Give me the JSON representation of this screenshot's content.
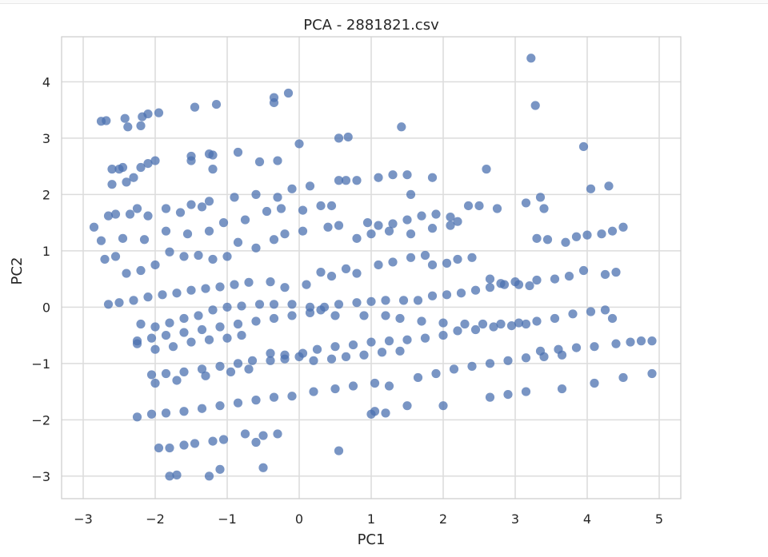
{
  "chart_data": {
    "type": "scatter",
    "title": "PCA - 2881821.csv",
    "xlabel": "PC1",
    "ylabel": "PC2",
    "xlim": [
      -3.3,
      5.3
    ],
    "ylim": [
      -3.4,
      4.8
    ],
    "xticks": [
      -3,
      -2,
      -1,
      0,
      1,
      2,
      3,
      4,
      5
    ],
    "yticks": [
      -3,
      -2,
      -1,
      0,
      1,
      2,
      3,
      4
    ],
    "xtick_labels": [
      "−3",
      "−2",
      "−1",
      "0",
      "1",
      "2",
      "3",
      "4",
      "5"
    ],
    "ytick_labels": [
      "−3",
      "−2",
      "−1",
      "0",
      "1",
      "2",
      "3",
      "4"
    ],
    "grid": true,
    "background": "#ffffff",
    "grid_color": "#dcdcdc",
    "marker_color": "#4c72b0",
    "series": [
      {
        "points": [
          [
            -2.85,
            1.42
          ],
          [
            -2.75,
            3.3
          ],
          [
            -2.68,
            3.31
          ],
          [
            -2.6,
            2.45
          ],
          [
            -2.5,
            2.45
          ],
          [
            -2.45,
            2.48
          ],
          [
            -2.42,
            3.35
          ],
          [
            -2.38,
            3.2
          ],
          [
            -2.2,
            3.22
          ],
          [
            -2.18,
            3.38
          ],
          [
            -2.1,
            3.43
          ],
          [
            -1.95,
            3.45
          ],
          [
            -1.45,
            3.55
          ],
          [
            -1.15,
            3.6
          ],
          [
            -0.35,
            3.72
          ],
          [
            -0.35,
            3.63
          ],
          [
            -0.15,
            3.8
          ],
          [
            0.0,
            2.9
          ],
          [
            0.55,
            3.0
          ],
          [
            0.68,
            3.02
          ],
          [
            1.42,
            3.2
          ],
          [
            3.22,
            4.42
          ],
          [
            3.28,
            3.58
          ],
          [
            3.95,
            2.85
          ],
          [
            -2.6,
            2.18
          ],
          [
            -2.4,
            2.22
          ],
          [
            -2.3,
            2.3
          ],
          [
            -2.2,
            2.48
          ],
          [
            -2.1,
            2.55
          ],
          [
            -2.0,
            2.6
          ],
          [
            -1.5,
            2.68
          ],
          [
            -1.5,
            2.6
          ],
          [
            -1.25,
            2.72
          ],
          [
            -1.2,
            2.7
          ],
          [
            -1.2,
            2.45
          ],
          [
            -0.85,
            2.75
          ],
          [
            -0.55,
            2.58
          ],
          [
            -0.3,
            2.6
          ],
          [
            2.6,
            2.45
          ],
          [
            -2.65,
            1.62
          ],
          [
            -2.55,
            1.65
          ],
          [
            -2.35,
            1.65
          ],
          [
            -2.25,
            1.75
          ],
          [
            -2.1,
            1.62
          ],
          [
            -1.85,
            1.75
          ],
          [
            -1.65,
            1.68
          ],
          [
            -1.5,
            1.82
          ],
          [
            -1.35,
            1.78
          ],
          [
            -1.25,
            1.88
          ],
          [
            -0.9,
            1.95
          ],
          [
            -0.6,
            2.0
          ],
          [
            -0.3,
            1.95
          ],
          [
            -0.1,
            2.1
          ],
          [
            0.15,
            2.15
          ],
          [
            0.55,
            2.25
          ],
          [
            0.65,
            2.25
          ],
          [
            0.8,
            2.25
          ],
          [
            1.1,
            2.3
          ],
          [
            1.3,
            2.35
          ],
          [
            1.5,
            2.35
          ],
          [
            1.55,
            2.0
          ],
          [
            1.85,
            2.3
          ],
          [
            2.35,
            1.8
          ],
          [
            2.5,
            1.8
          ],
          [
            2.75,
            1.75
          ],
          [
            3.15,
            1.85
          ],
          [
            3.35,
            1.95
          ],
          [
            3.4,
            1.75
          ],
          [
            4.05,
            2.1
          ],
          [
            4.3,
            2.15
          ],
          [
            -2.75,
            1.18
          ],
          [
            -2.45,
            1.22
          ],
          [
            -2.15,
            1.2
          ],
          [
            -1.85,
            1.35
          ],
          [
            -1.55,
            1.3
          ],
          [
            -1.25,
            1.35
          ],
          [
            -1.05,
            1.5
          ],
          [
            -0.75,
            1.55
          ],
          [
            -0.45,
            1.7
          ],
          [
            -0.25,
            1.75
          ],
          [
            0.05,
            1.72
          ],
          [
            0.3,
            1.8
          ],
          [
            0.45,
            1.8
          ],
          [
            0.95,
            1.5
          ],
          [
            1.1,
            1.45
          ],
          [
            1.3,
            1.48
          ],
          [
            1.5,
            1.55
          ],
          [
            1.7,
            1.62
          ],
          [
            1.9,
            1.65
          ],
          [
            2.1,
            1.6
          ],
          [
            2.2,
            1.52
          ],
          [
            -2.7,
            0.85
          ],
          [
            -2.55,
            0.9
          ],
          [
            -2.4,
            0.6
          ],
          [
            -2.2,
            0.65
          ],
          [
            -2.0,
            0.75
          ],
          [
            -1.8,
            0.98
          ],
          [
            -1.6,
            0.9
          ],
          [
            -1.4,
            0.92
          ],
          [
            -1.2,
            0.85
          ],
          [
            -1.0,
            0.9
          ],
          [
            -0.85,
            1.15
          ],
          [
            -0.6,
            1.05
          ],
          [
            -0.35,
            1.2
          ],
          [
            -0.2,
            1.3
          ],
          [
            0.05,
            1.35
          ],
          [
            0.4,
            1.42
          ],
          [
            0.55,
            1.45
          ],
          [
            0.8,
            1.22
          ],
          [
            1.0,
            1.3
          ],
          [
            1.25,
            1.35
          ],
          [
            1.55,
            1.3
          ],
          [
            1.85,
            1.4
          ],
          [
            2.1,
            1.45
          ],
          [
            3.3,
            1.22
          ],
          [
            3.45,
            1.2
          ],
          [
            3.7,
            1.15
          ],
          [
            3.85,
            1.25
          ],
          [
            4.0,
            1.28
          ],
          [
            4.2,
            1.3
          ],
          [
            4.35,
            1.35
          ],
          [
            4.5,
            1.42
          ],
          [
            -2.65,
            0.05
          ],
          [
            -2.5,
            0.08
          ],
          [
            -2.3,
            0.12
          ],
          [
            -2.1,
            0.18
          ],
          [
            -1.9,
            0.22
          ],
          [
            -1.7,
            0.25
          ],
          [
            -1.5,
            0.3
          ],
          [
            -1.3,
            0.33
          ],
          [
            -1.1,
            0.36
          ],
          [
            -0.9,
            0.4
          ],
          [
            -0.7,
            0.44
          ],
          [
            -0.4,
            0.45
          ],
          [
            -0.2,
            0.35
          ],
          [
            0.1,
            0.4
          ],
          [
            0.3,
            0.62
          ],
          [
            0.45,
            0.55
          ],
          [
            0.65,
            0.68
          ],
          [
            0.8,
            0.6
          ],
          [
            1.1,
            0.75
          ],
          [
            1.3,
            0.8
          ],
          [
            1.55,
            0.88
          ],
          [
            1.75,
            0.92
          ],
          [
            1.85,
            0.75
          ],
          [
            2.05,
            0.78
          ],
          [
            2.2,
            0.85
          ],
          [
            2.4,
            0.88
          ],
          [
            2.65,
            0.5
          ],
          [
            2.8,
            0.42
          ],
          [
            3.0,
            0.45
          ],
          [
            3.3,
            0.48
          ],
          [
            3.55,
            0.5
          ],
          [
            3.75,
            0.55
          ],
          [
            3.95,
            0.65
          ],
          [
            4.25,
            0.58
          ],
          [
            4.4,
            0.62
          ],
          [
            -2.2,
            -0.3
          ],
          [
            -2.0,
            -0.35
          ],
          [
            -1.8,
            -0.28
          ],
          [
            -1.6,
            -0.2
          ],
          [
            -1.4,
            -0.15
          ],
          [
            -1.2,
            -0.05
          ],
          [
            -1.0,
            0.0
          ],
          [
            -0.8,
            0.02
          ],
          [
            -0.55,
            0.05
          ],
          [
            -0.35,
            0.05
          ],
          [
            -0.1,
            0.05
          ],
          [
            0.15,
            0.0
          ],
          [
            0.35,
            0.0
          ],
          [
            0.55,
            0.05
          ],
          [
            0.8,
            0.08
          ],
          [
            1.0,
            0.1
          ],
          [
            1.2,
            0.12
          ],
          [
            1.45,
            0.12
          ],
          [
            1.65,
            0.12
          ],
          [
            1.85,
            0.2
          ],
          [
            2.05,
            0.22
          ],
          [
            2.25,
            0.25
          ],
          [
            2.45,
            0.3
          ],
          [
            2.65,
            0.35
          ],
          [
            2.85,
            0.4
          ],
          [
            3.05,
            0.4
          ],
          [
            3.2,
            0.38
          ],
          [
            -2.25,
            -0.6
          ],
          [
            -2.05,
            -0.55
          ],
          [
            -1.85,
            -0.5
          ],
          [
            -1.6,
            -0.45
          ],
          [
            -1.35,
            -0.4
          ],
          [
            -1.1,
            -0.35
          ],
          [
            -0.85,
            -0.3
          ],
          [
            -0.6,
            -0.25
          ],
          [
            -0.35,
            -0.2
          ],
          [
            -0.1,
            -0.15
          ],
          [
            0.15,
            -0.1
          ],
          [
            0.3,
            -0.05
          ],
          [
            0.5,
            -0.15
          ],
          [
            0.9,
            -0.15
          ],
          [
            1.2,
            -0.15
          ],
          [
            1.4,
            -0.2
          ],
          [
            1.7,
            -0.25
          ],
          [
            2.0,
            -0.28
          ],
          [
            2.3,
            -0.3
          ],
          [
            2.55,
            -0.3
          ],
          [
            2.8,
            -0.3
          ],
          [
            3.05,
            -0.28
          ],
          [
            3.3,
            -0.25
          ],
          [
            3.55,
            -0.2
          ],
          [
            3.8,
            -0.12
          ],
          [
            4.05,
            -0.08
          ],
          [
            4.25,
            -0.05
          ],
          [
            4.35,
            -0.2
          ],
          [
            -2.25,
            -0.65
          ],
          [
            -2.0,
            -0.75
          ],
          [
            -1.75,
            -0.7
          ],
          [
            -1.5,
            -0.62
          ],
          [
            -1.25,
            -0.58
          ],
          [
            -1.0,
            -0.55
          ],
          [
            -0.8,
            -0.5
          ],
          [
            -0.4,
            -0.82
          ],
          [
            -0.2,
            -0.85
          ],
          [
            0.05,
            -0.82
          ],
          [
            0.25,
            -0.75
          ],
          [
            0.5,
            -0.7
          ],
          [
            0.75,
            -0.67
          ],
          [
            1.0,
            -0.62
          ],
          [
            1.25,
            -0.6
          ],
          [
            1.5,
            -0.58
          ],
          [
            1.75,
            -0.55
          ],
          [
            2.0,
            -0.5
          ],
          [
            2.2,
            -0.42
          ],
          [
            2.45,
            -0.4
          ],
          [
            2.7,
            -0.35
          ],
          [
            2.95,
            -0.33
          ],
          [
            3.15,
            -0.3
          ],
          [
            3.35,
            -0.78
          ],
          [
            3.6,
            -0.75
          ],
          [
            3.85,
            -0.72
          ],
          [
            4.1,
            -0.7
          ],
          [
            4.4,
            -0.65
          ],
          [
            4.6,
            -0.62
          ],
          [
            4.75,
            -0.6
          ],
          [
            4.9,
            -0.6
          ],
          [
            -2.05,
            -1.2
          ],
          [
            -1.85,
            -1.18
          ],
          [
            -1.6,
            -1.15
          ],
          [
            -1.35,
            -1.1
          ],
          [
            -1.1,
            -1.05
          ],
          [
            -0.85,
            -1.0
          ],
          [
            -0.65,
            -0.95
          ],
          [
            -0.4,
            -0.95
          ],
          [
            -0.2,
            -0.92
          ],
          [
            0.0,
            -0.88
          ],
          [
            0.2,
            -0.95
          ],
          [
            0.45,
            -0.92
          ],
          [
            0.65,
            -0.88
          ],
          [
            0.9,
            -0.85
          ],
          [
            1.15,
            -0.8
          ],
          [
            1.4,
            -0.78
          ],
          [
            1.65,
            -1.25
          ],
          [
            1.9,
            -1.18
          ],
          [
            2.15,
            -1.1
          ],
          [
            2.4,
            -1.05
          ],
          [
            2.65,
            -1.0
          ],
          [
            2.9,
            -0.95
          ],
          [
            3.15,
            -0.9
          ],
          [
            3.4,
            -0.88
          ],
          [
            3.65,
            -0.85
          ],
          [
            4.5,
            -1.25
          ],
          [
            4.9,
            -1.18
          ],
          [
            -2.0,
            -1.35
          ],
          [
            -1.7,
            -1.3
          ],
          [
            -1.3,
            -1.22
          ],
          [
            -0.95,
            -1.15
          ],
          [
            -0.7,
            -1.1
          ],
          [
            0.75,
            -1.4
          ],
          [
            1.05,
            -1.35
          ],
          [
            1.25,
            -1.4
          ],
          [
            1.5,
            -1.75
          ],
          [
            2.0,
            -1.75
          ],
          [
            2.65,
            -1.6
          ],
          [
            2.9,
            -1.55
          ],
          [
            3.15,
            -1.5
          ],
          [
            3.65,
            -1.45
          ],
          [
            4.1,
            -1.35
          ],
          [
            -2.25,
            -1.95
          ],
          [
            -2.05,
            -1.9
          ],
          [
            -1.85,
            -1.88
          ],
          [
            -1.6,
            -1.85
          ],
          [
            -1.35,
            -1.8
          ],
          [
            -1.1,
            -1.75
          ],
          [
            -0.85,
            -1.7
          ],
          [
            -0.6,
            -1.65
          ],
          [
            -0.35,
            -1.6
          ],
          [
            -0.1,
            -1.58
          ],
          [
            0.2,
            -1.5
          ],
          [
            0.5,
            -1.45
          ],
          [
            1.0,
            -1.9
          ],
          [
            1.2,
            -1.88
          ],
          [
            1.05,
            -1.85
          ],
          [
            -1.95,
            -2.5
          ],
          [
            -1.8,
            -2.5
          ],
          [
            -1.6,
            -2.45
          ],
          [
            -1.45,
            -2.42
          ],
          [
            -1.2,
            -2.38
          ],
          [
            -1.05,
            -2.35
          ],
          [
            -0.75,
            -2.25
          ],
          [
            -0.5,
            -2.28
          ],
          [
            -0.3,
            -2.25
          ],
          [
            -0.6,
            -2.4
          ],
          [
            0.55,
            -2.55
          ],
          [
            -1.8,
            -3.0
          ],
          [
            -1.7,
            -2.98
          ],
          [
            -1.25,
            -3.0
          ],
          [
            -1.1,
            -2.88
          ],
          [
            -0.5,
            -2.85
          ]
        ]
      }
    ]
  }
}
